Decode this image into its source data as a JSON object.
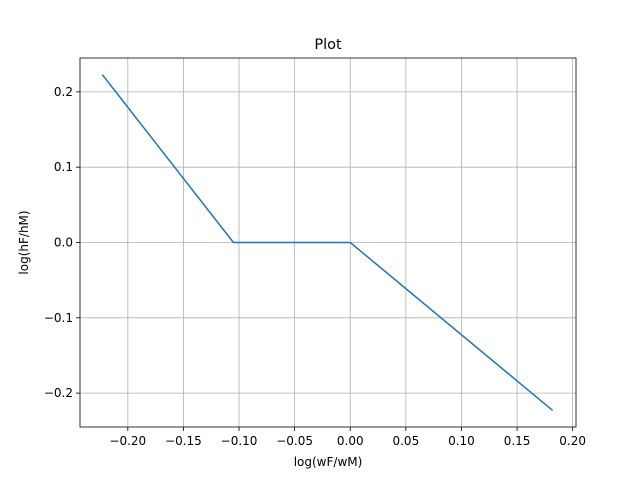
{
  "chart_data": {
    "type": "line",
    "title": "Plot",
    "xlabel": "log(wF/wM)",
    "ylabel": "log(hF/hM)",
    "xlim": [
      -0.243,
      0.203
    ],
    "ylim": [
      -0.245,
      0.245
    ],
    "grid": true,
    "x_ticks": [
      -0.2,
      -0.15,
      -0.1,
      -0.05,
      0.0,
      0.05,
      0.1,
      0.15,
      0.2
    ],
    "x_tick_labels": [
      "−0.20",
      "−0.15",
      "−0.10",
      "−0.05",
      "0.00",
      "0.05",
      "0.10",
      "0.15",
      "0.20"
    ],
    "y_ticks": [
      -0.2,
      -0.1,
      0.0,
      0.1,
      0.2
    ],
    "y_tick_labels": [
      "−0.2",
      "−0.1",
      "0.0",
      "0.1",
      "0.2"
    ],
    "series": [
      {
        "color": "#1f77b4",
        "x": [
          -0.223,
          -0.105,
          0.0,
          0.182
        ],
        "y": [
          0.223,
          0.0,
          0.0,
          -0.223
        ]
      }
    ]
  }
}
